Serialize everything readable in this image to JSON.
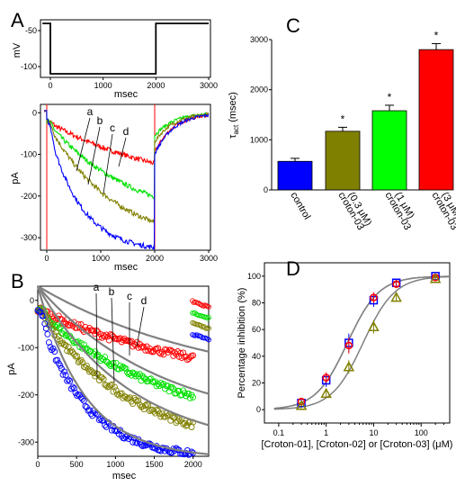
{
  "panel_labels": [
    "A",
    "B",
    "C",
    "D"
  ],
  "colors": {
    "a": "#ff0000",
    "b": "#00e000",
    "c": "#808000",
    "d": "#0000ff",
    "fit": "#808080"
  },
  "chart_data": [
    {
      "id": "A-top",
      "type": "line",
      "ylabel": "mV",
      "xlabel": "msec",
      "xlim": [
        0,
        3000
      ],
      "ylim": [
        -115,
        -35
      ],
      "xticks": [
        "0",
        "1000",
        "2000",
        "3000"
      ],
      "yticks": [
        "-50",
        "-100"
      ],
      "series": [
        {
          "x": [
            -150,
            0,
            0,
            2000,
            2000,
            3000
          ],
          "y": [
            -40,
            -40,
            -110,
            -110,
            -40,
            -40
          ]
        }
      ]
    },
    {
      "id": "A-bottom",
      "type": "line",
      "ylabel": "pA",
      "xlabel": "msec",
      "xlim": [
        -50,
        3000
      ],
      "ylim": [
        -330,
        20
      ],
      "xticks": [
        "0",
        "1000",
        "2000",
        "3000"
      ],
      "yticks": [
        "0",
        "-100",
        "-200",
        "-300"
      ],
      "annotations": [
        "a",
        "b",
        "c",
        "d"
      ],
      "series": [
        {
          "label": "a",
          "amp": 175,
          "tau": 2300,
          "tail": -95
        },
        {
          "label": "b",
          "amp": 255,
          "tau": 1600,
          "tail": -55
        },
        {
          "label": "c",
          "amp": 300,
          "tau": 1200,
          "tail": -70
        },
        {
          "label": "d",
          "amp": 315,
          "tau": 600,
          "tail": -100
        }
      ]
    },
    {
      "id": "B",
      "type": "scatter",
      "ylabel": "pA",
      "xlabel": "msec",
      "xlim": [
        0,
        2200
      ],
      "ylim": [
        -330,
        30
      ],
      "xticks": [
        "0",
        "500",
        "1000",
        "1500",
        "2000"
      ],
      "yticks": [
        "0",
        "-100",
        "-200",
        "-300"
      ],
      "annotations": [
        "a",
        "b",
        "c",
        "d"
      ],
      "series": [
        {
          "label": "a",
          "amp": 175,
          "tau": 2300
        },
        {
          "label": "b",
          "amp": 255,
          "tau": 1600
        },
        {
          "label": "c",
          "amp": 300,
          "tau": 1200
        },
        {
          "label": "d",
          "amp": 315,
          "tau": 600
        }
      ]
    },
    {
      "id": "C",
      "type": "bar",
      "ylabel": "τact (msec)",
      "ylabel_main": "τ",
      "ylabel_sub": "act",
      "ylabel_rest": " (msec)",
      "ylim": [
        0,
        3000
      ],
      "yticks": [
        "0",
        "1000",
        "2000",
        "3000"
      ],
      "categories": [
        "control",
        "croton-03 (0.3 μM)",
        "croton-03 (1 μM)",
        "croton-03 (3 μM)"
      ],
      "category_lines": [
        [
          "control"
        ],
        [
          "croton-03",
          "(0.3 μM)"
        ],
        [
          "croton-03",
          "(1 μM)"
        ],
        [
          "croton-03",
          "(3 μM)"
        ]
      ],
      "values": [
        570,
        1170,
        1580,
        2800
      ],
      "errors": [
        60,
        80,
        110,
        120
      ],
      "significance": [
        "",
        "*",
        "*",
        "*"
      ],
      "bar_colors": [
        "#0000ff",
        "#808000",
        "#00ff00",
        "#ff0000"
      ]
    },
    {
      "id": "D",
      "type": "scatter",
      "ylabel": "Percentage inhibition (%)",
      "xlabel": "[Croton-01], [Croton-02] or [Croton-03] (μM)",
      "xscale": "log",
      "xlim": [
        0.05,
        400
      ],
      "ylim": [
        -10,
        110
      ],
      "xticks": [
        "0.1",
        "1",
        "10",
        "100"
      ],
      "yticks": [
        "0",
        "20",
        "40",
        "60",
        "80",
        "100"
      ],
      "series": [
        {
          "marker": "square",
          "color": "#0000ff",
          "x": [
            0.3,
            1,
            3,
            10,
            30,
            200
          ],
          "y": [
            5,
            22,
            50,
            82,
            95,
            100
          ],
          "err": [
            3,
            5,
            7,
            5,
            3,
            1
          ],
          "ec50": 2.8,
          "hill": 1.3
        },
        {
          "marker": "circle",
          "color": "#ff0000",
          "x": [
            0.3,
            1,
            3,
            10,
            30,
            200
          ],
          "y": [
            6,
            24,
            48,
            84,
            94,
            99
          ],
          "err": [
            3,
            4,
            6,
            4,
            3,
            1
          ],
          "ec50": 2.8,
          "hill": 1.3
        },
        {
          "marker": "triangle",
          "color": "#808000",
          "x": [
            0.3,
            1,
            3,
            10,
            30,
            200
          ],
          "y": [
            3,
            12,
            32,
            62,
            84,
            98
          ],
          "err": [
            2,
            3,
            5,
            5,
            3,
            1
          ],
          "ec50": 6.0,
          "hill": 1.3
        }
      ]
    }
  ]
}
